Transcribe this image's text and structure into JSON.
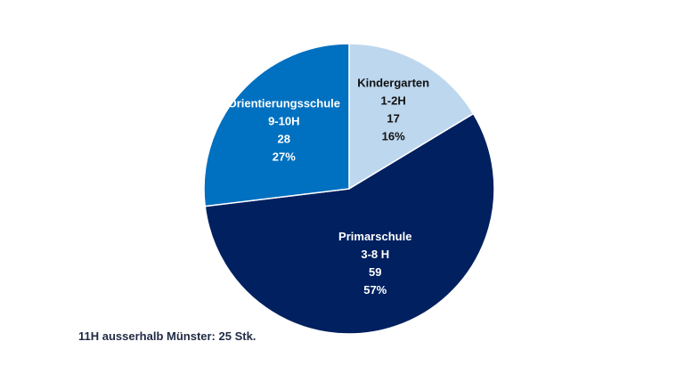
{
  "chart_data": {
    "type": "pie",
    "title": "",
    "start_angle_deg": 0,
    "slices": [
      {
        "name": "Kindergarten",
        "range": "1-2H",
        "value": 17,
        "percent": "16%",
        "color": "#bdd7ee",
        "text_color": "#111111"
      },
      {
        "name": "Primarschule",
        "range": "3-8 H",
        "value": 59,
        "percent": "57%",
        "color": "#002060",
        "text_color": "#ffffff"
      },
      {
        "name": "Orientierungsschule",
        "range": "9-10H",
        "value": 28,
        "percent": "27%",
        "color": "#0070c0",
        "text_color": "#ffffff"
      }
    ]
  },
  "footnote": "11H ausserhalb Münster: 25 Stk."
}
